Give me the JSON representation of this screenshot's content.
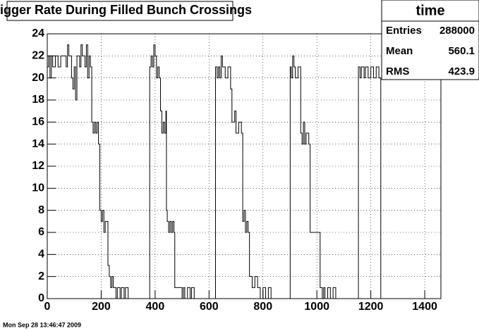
{
  "chart_data": {
    "type": "line",
    "title": "Trigger Rate During Filled Bunch Crossings",
    "footer": "Mon Sep 28 13:46:47 2009",
    "stats": {
      "title": "time",
      "rows": [
        {
          "label": "Entries",
          "value": 288000
        },
        {
          "label": "Mean",
          "value": 560.1
        },
        {
          "label": "RMS",
          "value": 423.9
        }
      ]
    },
    "step": true,
    "grid": true,
    "color": "#000000",
    "xlim": [
      0,
      1460
    ],
    "xticks": [
      0,
      200,
      400,
      600,
      800,
      1000,
      1200,
      1400
    ],
    "ylim": [
      0,
      24
    ],
    "yticks": [
      0,
      2,
      4,
      6,
      8,
      10,
      12,
      14,
      16,
      18,
      20,
      22,
      24
    ],
    "x": [
      0,
      5,
      10,
      15,
      20,
      30,
      40,
      50,
      60,
      70,
      75,
      80,
      90,
      95,
      100,
      105,
      110,
      120,
      125,
      130,
      140,
      145,
      150,
      155,
      160,
      165,
      170,
      175,
      180,
      185,
      190,
      195,
      200,
      205,
      210,
      215,
      220,
      225,
      230,
      235,
      240,
      245,
      255,
      260,
      270,
      275,
      285,
      290,
      300,
      380,
      385,
      390,
      395,
      400,
      405,
      410,
      415,
      420,
      425,
      430,
      435,
      440,
      442,
      445,
      450,
      455,
      460,
      465,
      470,
      473,
      490,
      500,
      505,
      510,
      520,
      530,
      535,
      545,
      624,
      630,
      635,
      640,
      645,
      650,
      660,
      670,
      680,
      685,
      695,
      700,
      710,
      720,
      725,
      730,
      735,
      740,
      745,
      750,
      760,
      770,
      780,
      790,
      800,
      810,
      820,
      830,
      901,
      905,
      910,
      915,
      920,
      930,
      940,
      945,
      950,
      955,
      960,
      970,
      975,
      985,
      1000,
      1012,
      1020,
      1025,
      1030,
      1040,
      1050,
      1060,
      1070,
      1078,
      1154,
      1160,
      1165,
      1175,
      1180,
      1190,
      1200,
      1210,
      1220,
      1230,
      1237
    ],
    "values": [
      21,
      22,
      20,
      22,
      21,
      22,
      21,
      22,
      22,
      21,
      23,
      22,
      20,
      19,
      21,
      18,
      22,
      21,
      23,
      22,
      21,
      23,
      20,
      22,
      21,
      16,
      15,
      16,
      15,
      16,
      14,
      8,
      7,
      8,
      6,
      7,
      7,
      3,
      2,
      1,
      2,
      1,
      0,
      1,
      0,
      1,
      0,
      1,
      0,
      21,
      22,
      21,
      23,
      22,
      20,
      21,
      20,
      17,
      15,
      16,
      15,
      17,
      8,
      7,
      6,
      7,
      6,
      7,
      6,
      1,
      1,
      0,
      1,
      0,
      1,
      0,
      1,
      0,
      21,
      20,
      21,
      20,
      22,
      21,
      20,
      21,
      19,
      16,
      17,
      15,
      16,
      15,
      7,
      8,
      6,
      7,
      6,
      2,
      1,
      2,
      1,
      0,
      1,
      0,
      1,
      0,
      21,
      20,
      22,
      21,
      20,
      21,
      15,
      14,
      16,
      14,
      15,
      14,
      6,
      6,
      6,
      1,
      0,
      1,
      0,
      1,
      0,
      1,
      0,
      0,
      21,
      20,
      21,
      20,
      21,
      20,
      21,
      20,
      21,
      20,
      0
    ]
  }
}
